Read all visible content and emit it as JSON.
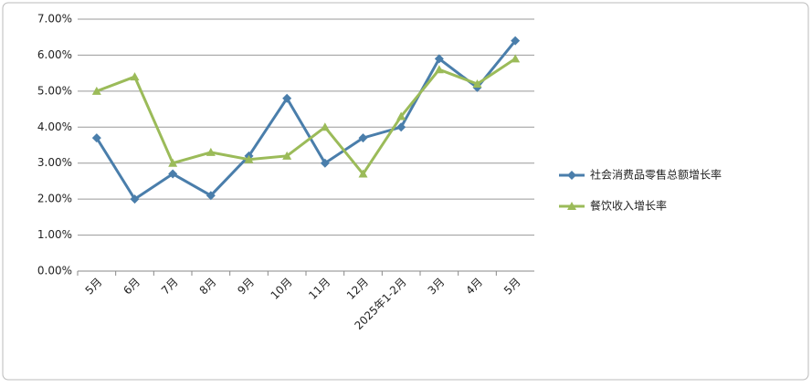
{
  "chart_data": {
    "type": "line",
    "categories": [
      "5月",
      "6月",
      "7月",
      "8月",
      "9月",
      "10月",
      "11月",
      "12月",
      "2025年1-2月",
      "3月",
      "4月",
      "5月"
    ],
    "series": [
      {
        "name": "社会消费品零售总额增长率",
        "color": "#4a7eab",
        "marker": "diamond",
        "values": [
          3.7,
          2.0,
          2.7,
          2.1,
          3.2,
          4.8,
          3.0,
          3.7,
          4.0,
          5.9,
          5.1,
          6.4
        ]
      },
      {
        "name": "餐饮收入增长率",
        "color": "#9bbb59",
        "marker": "triangle",
        "values": [
          5.0,
          5.4,
          3.0,
          3.3,
          3.1,
          3.2,
          4.0,
          2.7,
          4.3,
          5.6,
          5.2,
          5.9
        ]
      }
    ],
    "ylim": [
      0,
      7
    ],
    "yticks": [
      {
        "value": 0,
        "label": "0.00%"
      },
      {
        "value": 1,
        "label": "1.00%"
      },
      {
        "value": 2,
        "label": "2.00%"
      },
      {
        "value": 3,
        "label": "3.00%"
      },
      {
        "value": 4,
        "label": "4.00%"
      },
      {
        "value": 5,
        "label": "5.00%"
      },
      {
        "value": 6,
        "label": "6.00%"
      },
      {
        "value": 7,
        "label": "7.00%"
      }
    ],
    "grid": true,
    "legend": "right"
  }
}
